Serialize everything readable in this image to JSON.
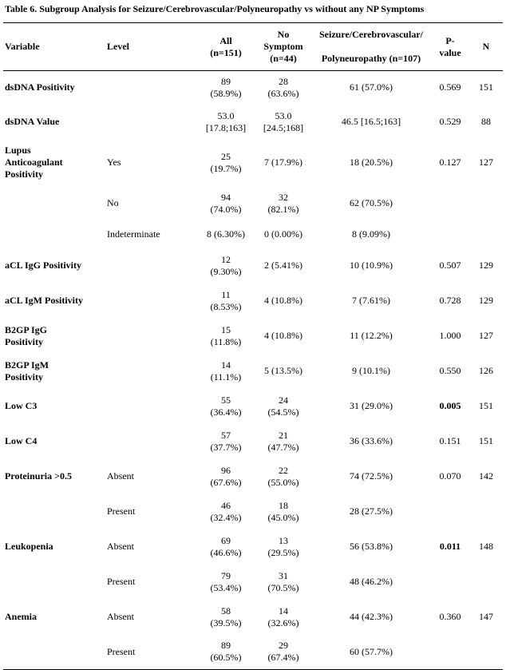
{
  "title": "Table 6. Subgroup Analysis for Seizure/Cerebrovascular/Polyneuropathy vs without any NP Symptoms",
  "table": {
    "header": [
      "Variable",
      "Level",
      "All\n(n=151)",
      "No\nSymptom\n(n=44)",
      "Seizure/Cerebrovascular/\n\nPolyneuropathy (n=107)",
      "P-\nvalue",
      "N"
    ],
    "rows": [
      {
        "variable": "dsDNA Positivity",
        "level": null,
        "all": "89\n(58.9%)",
        "no_symptom": "28\n(63.6%)",
        "group": "61 (57.0%)",
        "p": "0.569",
        "n": "151"
      },
      {
        "variable": "dsDNA Value",
        "level": null,
        "all": "53.0\n[17.8;163]",
        "no_symptom": "53.0\n[24.5;168]",
        "group": "46.5 [16.5;163]",
        "p": "0.529",
        "n": "88"
      },
      {
        "variable": "Lupus\nAnticoagulant\nPositivity",
        "level": "Yes",
        "all": "25\n(19.7%)",
        "no_symptom": "7 (17.9%)",
        "group": "18 (20.5%)",
        "p": "0.127",
        "n": "127"
      },
      {
        "variable": null,
        "level": "No",
        "all": "94\n(74.0%)",
        "no_symptom": "32\n(82.1%)",
        "group": "62 (70.5%)",
        "p": null,
        "n": null
      },
      {
        "variable": null,
        "level": "Indeterminate",
        "all": "8 (6.30%)",
        "no_symptom": "0 (0.00%)",
        "group": "8 (9.09%)",
        "p": null,
        "n": null
      },
      {
        "variable": "aCL IgG Positivity",
        "level": null,
        "all": "12\n(9.30%)",
        "no_symptom": "2 (5.41%)",
        "group": "10 (10.9%)",
        "p": "0.507",
        "n": "129"
      },
      {
        "variable": "aCL IgM Positivity",
        "level": null,
        "all": "11\n(8.53%)",
        "no_symptom": "4 (10.8%)",
        "group": "7 (7.61%)",
        "p": "0.728",
        "n": "129"
      },
      {
        "variable": "B2GP IgG\nPositivity",
        "level": null,
        "all": "15\n(11.8%)",
        "no_symptom": "4 (10.8%)",
        "group": "11 (12.2%)",
        "p": "1.000",
        "n": "127"
      },
      {
        "variable": "B2GP IgM\nPositivity",
        "level": null,
        "all": "14\n(11.1%)",
        "no_symptom": "5 (13.5%)",
        "group": "9 (10.1%)",
        "p": "0.550",
        "n": "126"
      },
      {
        "variable": "Low C3",
        "level": null,
        "all": "55\n(36.4%)",
        "no_symptom": "24\n(54.5%)",
        "group": "31 (29.0%)",
        "p": "0.005",
        "p_bold": true,
        "n": "151"
      },
      {
        "variable": "Low C4",
        "level": null,
        "all": "57\n(37.7%)",
        "no_symptom": "21\n(47.7%)",
        "group": "36 (33.6%)",
        "p": "0.151",
        "n": "151"
      },
      {
        "variable": "Proteinuria >0.5",
        "level": "Absent",
        "all": "96\n(67.6%)",
        "no_symptom": "22\n(55.0%)",
        "group": "74 (72.5%)",
        "p": "0.070",
        "n": "142"
      },
      {
        "variable": null,
        "level": "Present",
        "all": "46\n(32.4%)",
        "no_symptom": "18\n(45.0%)",
        "group": "28 (27.5%)",
        "p": null,
        "n": null
      },
      {
        "variable": "Leukopenia",
        "level": "Absent",
        "all": "69\n(46.6%)",
        "no_symptom": "13\n(29.5%)",
        "group": "56 (53.8%)",
        "p": "0.011",
        "p_bold": true,
        "n": "148"
      },
      {
        "variable": null,
        "level": "Present",
        "all": "79\n(53.4%)",
        "no_symptom": "31\n(70.5%)",
        "group": "48 (46.2%)",
        "p": null,
        "n": null
      },
      {
        "variable": "Anemia",
        "level": "Absent",
        "all": "58\n(39.5%)",
        "no_symptom": "14\n(32.6%)",
        "group": "44 (42.3%)",
        "p": "0.360",
        "n": "147"
      },
      {
        "variable": null,
        "level": "Present",
        "all": "89\n(60.5%)",
        "no_symptom": "29\n(67.4%)",
        "group": "60 (57.7%)",
        "p": null,
        "n": null
      }
    ]
  }
}
